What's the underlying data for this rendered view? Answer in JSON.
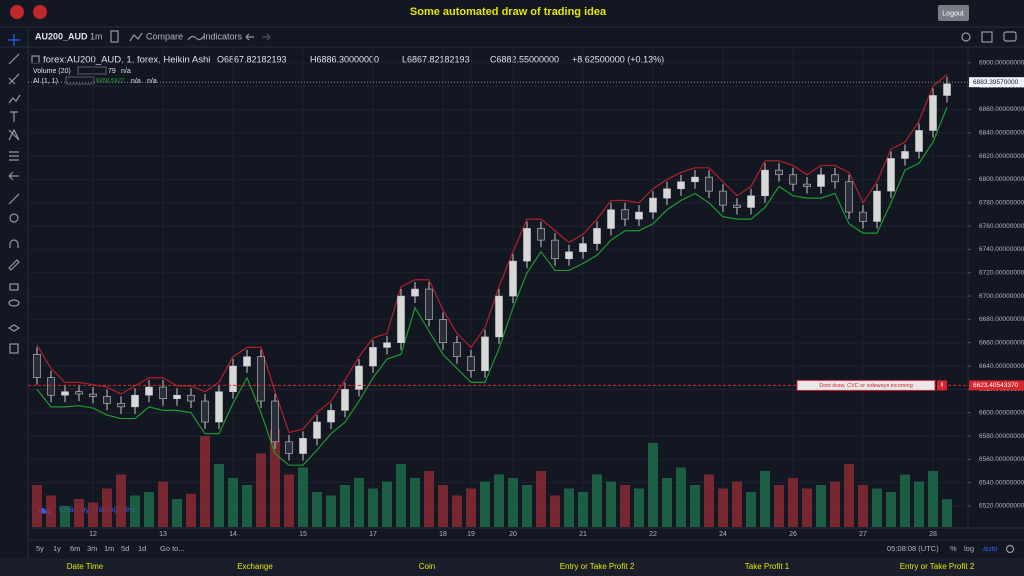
{
  "header": {
    "title": "Some automated draw of trading idea",
    "logout": "Logout"
  },
  "toolbar": {
    "symbol": "AU200_AUD",
    "interval": "1m",
    "compare": "Compare",
    "indicators": "Indicators"
  },
  "legend": {
    "symbol": "forex:AU200_AUD, 1, forex, Heikin Ashi",
    "open": "O6867.82182193",
    "high": "H6886.30000000",
    "low": "L6867.82182193",
    "close": "C6882.55000000",
    "change": "+8.62500000 (+0.13%)"
  },
  "volume_legend": {
    "name": "Volume (20)",
    "ma": "n/a"
  },
  "ai_legend": {
    "name": "AI (1, 1)",
    "value": "6858.5827",
    "first": "n/a",
    "second": "n/a"
  },
  "chart_data": {
    "type": "candlestick",
    "categories": [
      null,
      null,
      null,
      null,
      "12",
      null,
      null,
      null,
      null,
      "13",
      null,
      null,
      null,
      null,
      "14",
      null,
      null,
      null,
      null,
      "15",
      null,
      null,
      null,
      null,
      "17",
      null,
      null,
      null,
      null,
      "18",
      null,
      "19",
      null,
      null,
      "20",
      null,
      null,
      null,
      null,
      "21",
      null,
      null,
      null,
      null,
      "22",
      null,
      null,
      null,
      null,
      "24",
      null,
      null,
      null,
      null,
      "26",
      null,
      null,
      null,
      null,
      "27",
      null,
      null,
      null,
      null,
      "28",
      null
    ],
    "open": [
      6650,
      6630,
      6615,
      6618,
      6616,
      6614,
      6608,
      6605,
      6615,
      6622,
      6612,
      6615,
      6610,
      6592,
      6618,
      6640,
      6648,
      6610,
      6575,
      6565,
      6578,
      6592,
      6602,
      6620,
      6640,
      6656,
      6660,
      6700,
      6706,
      6680,
      6660,
      6648,
      6636,
      6665,
      6700,
      6730,
      6758,
      6748,
      6732,
      6738,
      6745,
      6758,
      6774,
      6766,
      6772,
      6784,
      6792,
      6798,
      6802,
      6790,
      6778,
      6776,
      6786,
      6808,
      6804,
      6796,
      6794,
      6804,
      6798,
      6772,
      6764,
      6790,
      6818,
      6824,
      6842,
      6872
    ],
    "high": [
      6656,
      6636,
      6624,
      6624,
      6622,
      6620,
      6614,
      6621,
      6628,
      6628,
      6621,
      6621,
      6616,
      6624,
      6646,
      6654,
      6654,
      6616,
      6581,
      6584,
      6598,
      6608,
      6626,
      6646,
      6662,
      6666,
      6706,
      6712,
      6712,
      6686,
      6666,
      6654,
      6671,
      6706,
      6736,
      6764,
      6764,
      6754,
      6744,
      6751,
      6764,
      6780,
      6780,
      6778,
      6790,
      6798,
      6804,
      6808,
      6808,
      6796,
      6784,
      6792,
      6814,
      6814,
      6810,
      6802,
      6810,
      6810,
      6804,
      6778,
      6796,
      6824,
      6830,
      6848,
      6878,
      6888
    ],
    "low": [
      6624,
      6609,
      6609,
      6610,
      6608,
      6602,
      6599,
      6599,
      6609,
      6606,
      6606,
      6604,
      6586,
      6586,
      6612,
      6634,
      6604,
      6569,
      6559,
      6559,
      6572,
      6586,
      6596,
      6614,
      6634,
      6650,
      6654,
      6694,
      6674,
      6654,
      6642,
      6630,
      6630,
      6659,
      6694,
      6724,
      6742,
      6726,
      6726,
      6732,
      6739,
      6752,
      6760,
      6760,
      6766,
      6778,
      6786,
      6792,
      6784,
      6772,
      6770,
      6770,
      6780,
      6798,
      6790,
      6788,
      6788,
      6792,
      6766,
      6758,
      6758,
      6784,
      6812,
      6818,
      6836,
      6866
    ],
    "close": [
      6630,
      6615,
      6618,
      6616,
      6614,
      6608,
      6605,
      6615,
      6622,
      6612,
      6615,
      6610,
      6592,
      6618,
      6640,
      6648,
      6610,
      6575,
      6565,
      6578,
      6592,
      6602,
      6620,
      6640,
      6656,
      6660,
      6700,
      6706,
      6680,
      6660,
      6648,
      6636,
      6665,
      6700,
      6730,
      6758,
      6748,
      6732,
      6738,
      6745,
      6758,
      6774,
      6766,
      6772,
      6784,
      6792,
      6798,
      6802,
      6790,
      6778,
      6776,
      6786,
      6808,
      6804,
      6796,
      6794,
      6804,
      6798,
      6772,
      6764,
      6790,
      6818,
      6824,
      6842,
      6872,
      6882
    ],
    "up_color": "#d8d8d8",
    "down_color": "#2a2e39",
    "lines": [
      {
        "color": "#b3202a",
        "values": [
          6658,
          6638,
          6626,
          6626,
          6624,
          6622,
          6616,
          6623,
          6630,
          6630,
          6623,
          6623,
          6618,
          6626,
          6648,
          6656,
          6656,
          6618,
          6583,
          6586,
          6600,
          6610,
          6628,
          6648,
          6664,
          6668,
          6708,
          6714,
          6714,
          6688,
          6668,
          6656,
          6673,
          6708,
          6738,
          6766,
          6766,
          6756,
          6746,
          6753,
          6766,
          6782,
          6782,
          6780,
          6792,
          6800,
          6806,
          6810,
          6810,
          6798,
          6786,
          6794,
          6816,
          6816,
          6812,
          6804,
          6812,
          6812,
          6806,
          6780,
          6798,
          6826,
          6832,
          6850,
          6880,
          6890
        ]
      },
      {
        "color": "#1e9a2e",
        "values": [
          6620,
          6605,
          6605,
          6606,
          6604,
          6598,
          6595,
          6595,
          6605,
          6602,
          6602,
          6600,
          6582,
          6582,
          6608,
          6630,
          6600,
          6565,
          6555,
          6555,
          6568,
          6582,
          6592,
          6610,
          6630,
          6646,
          6650,
          6690,
          6670,
          6650,
          6638,
          6626,
          6626,
          6655,
          6690,
          6720,
          6738,
          6722,
          6722,
          6728,
          6735,
          6748,
          6756,
          6756,
          6762,
          6774,
          6782,
          6788,
          6780,
          6768,
          6766,
          6766,
          6776,
          6794,
          6786,
          6784,
          6784,
          6788,
          6762,
          6754,
          6754,
          6780,
          6808,
          6814,
          6832,
          6862
        ]
      }
    ],
    "volume": {
      "up_color": "#1f6b4a",
      "down_color": "#8a2a33",
      "y2lim": [
        0,
        300
      ],
      "values": [
        120,
        90,
        60,
        80,
        70,
        110,
        150,
        90,
        100,
        130,
        80,
        95,
        260,
        180,
        140,
        120,
        210,
        280,
        150,
        170,
        100,
        90,
        120,
        140,
        110,
        130,
        180,
        140,
        160,
        120,
        90,
        110,
        130,
        150,
        140,
        120,
        160,
        90,
        110,
        100,
        150,
        130,
        120,
        110,
        240,
        140,
        170,
        120,
        150,
        110,
        130,
        100,
        160,
        120,
        140,
        110,
        120,
        130,
        180,
        120,
        110,
        100,
        150,
        130,
        160,
        79
      ]
    },
    "ylim": [
      6502,
      6911
    ],
    "yticks": [
      {
        "value": 6520,
        "label": "6520.00000000"
      },
      {
        "value": 6540,
        "label": "6540.00000000"
      },
      {
        "value": 6560,
        "label": "6560.00000000"
      },
      {
        "value": 6580,
        "label": "6580.00000000"
      },
      {
        "value": 6600,
        "label": "6600.00000000"
      },
      {
        "value": 6620,
        "label": "6620.00000000"
      },
      {
        "value": 6640,
        "label": "6640.00000000"
      },
      {
        "value": 6660,
        "label": "6660.00000000"
      },
      {
        "value": 6680,
        "label": "6680.00000000"
      },
      {
        "value": 6700,
        "label": "6700.00000000"
      },
      {
        "value": 6720,
        "label": "6720.00000000"
      },
      {
        "value": 6740,
        "label": "6740.00000000"
      },
      {
        "value": 6760,
        "label": "6760.00000000"
      },
      {
        "value": 6780,
        "label": "6780.00000000"
      },
      {
        "value": 6800,
        "label": "6800.00000000"
      },
      {
        "value": 6820,
        "label": "6820.00000000"
      },
      {
        "value": 6840,
        "label": "6840.00000000"
      },
      {
        "value": 6860,
        "label": "6860.00000000"
      },
      {
        "value": 6880,
        "label": "6880.00000000"
      },
      {
        "value": 6900,
        "label": "6900.00000000"
      }
    ],
    "grid": true,
    "price_line": {
      "value": 6883.3957,
      "label": "6883.39570000"
    },
    "annotation": {
      "value": 6623.4054337,
      "label": "6623.40543370",
      "text": "Dont draw, CVC or sideways incoming",
      "color": "#d8262d"
    }
  },
  "watermark": "Chart by TradingView",
  "range_buttons": [
    "5y",
    "1y",
    "6m",
    "3m",
    "1m",
    "5d",
    "1d"
  ],
  "goto": "Go to...",
  "clock": "05:08:08 (UTC)",
  "percent": "%",
  "log": "log",
  "auto": "auto",
  "columns": [
    "Date Time",
    "Exchange",
    "Coin",
    "Entry or Take Profit 2",
    "Take Profit 1",
    "Entry or Take Profit 2"
  ]
}
